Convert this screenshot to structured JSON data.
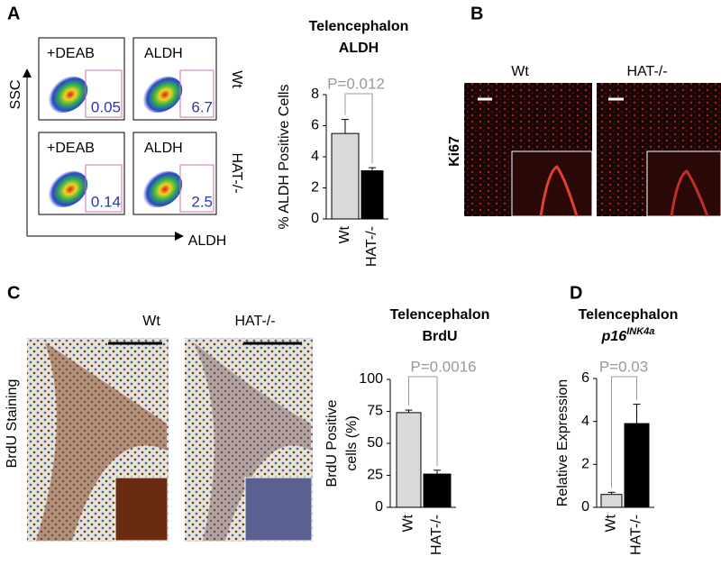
{
  "panel_labels": [
    "A",
    "B",
    "C",
    "D"
  ],
  "flow_cytometry": {
    "y_axis": "SSC",
    "x_axis": "ALDH",
    "columns": [
      "+DEAB",
      "ALDH"
    ],
    "rows": [
      {
        "name": "Wt",
        "values": [
          0.05,
          6.7
        ]
      },
      {
        "name": "HAT-/-",
        "values": [
          0.14,
          2.5
        ]
      }
    ]
  },
  "ki67": {
    "stain": "Ki67",
    "columns": [
      "Wt",
      "HAT-/-"
    ]
  },
  "brdu_staining": {
    "stain": "BrdU Staining",
    "columns": [
      "Wt",
      "HAT-/-"
    ]
  },
  "chart_data": [
    {
      "type": "bar",
      "title": "Telencephalon",
      "subtitle": "ALDH",
      "ylabel": [
        "% ALDH Positive Cells"
      ],
      "categories": [
        "Wt",
        "HAT-/-"
      ],
      "values": [
        5.5,
        3.1
      ],
      "errors": [
        0.9,
        0.2
      ],
      "colors": [
        "#d9d9d9",
        "#000000"
      ],
      "ylim": [
        0,
        8
      ],
      "yticks": [
        0,
        2,
        4,
        6,
        8
      ],
      "annotation": "P=0.012"
    },
    {
      "type": "bar",
      "title": "Telencephalon",
      "subtitle": "BrdU",
      "ylabel": [
        "BrdU Positive",
        "cells (%)"
      ],
      "categories": [
        "Wt",
        "HAT-/-"
      ],
      "values": [
        74,
        26
      ],
      "errors": [
        2,
        3
      ],
      "colors": [
        "#d9d9d9",
        "#000000"
      ],
      "ylim": [
        0,
        100
      ],
      "yticks": [
        0,
        25,
        50,
        75,
        100
      ],
      "annotation": "P=0.0016"
    },
    {
      "type": "bar",
      "title": "Telencephalon",
      "subtitle": "p16",
      "subtitle_superscript": "INK4a",
      "ylabel": [
        "Relative Expression"
      ],
      "categories": [
        "Wt",
        "HAT-/-"
      ],
      "values": [
        0.6,
        3.9
      ],
      "errors": [
        0.1,
        0.9
      ],
      "colors": [
        "#d9d9d9",
        "#000000"
      ],
      "ylim": [
        0,
        6
      ],
      "yticks": [
        0,
        2,
        4,
        6
      ],
      "annotation": "P=0.03"
    }
  ]
}
